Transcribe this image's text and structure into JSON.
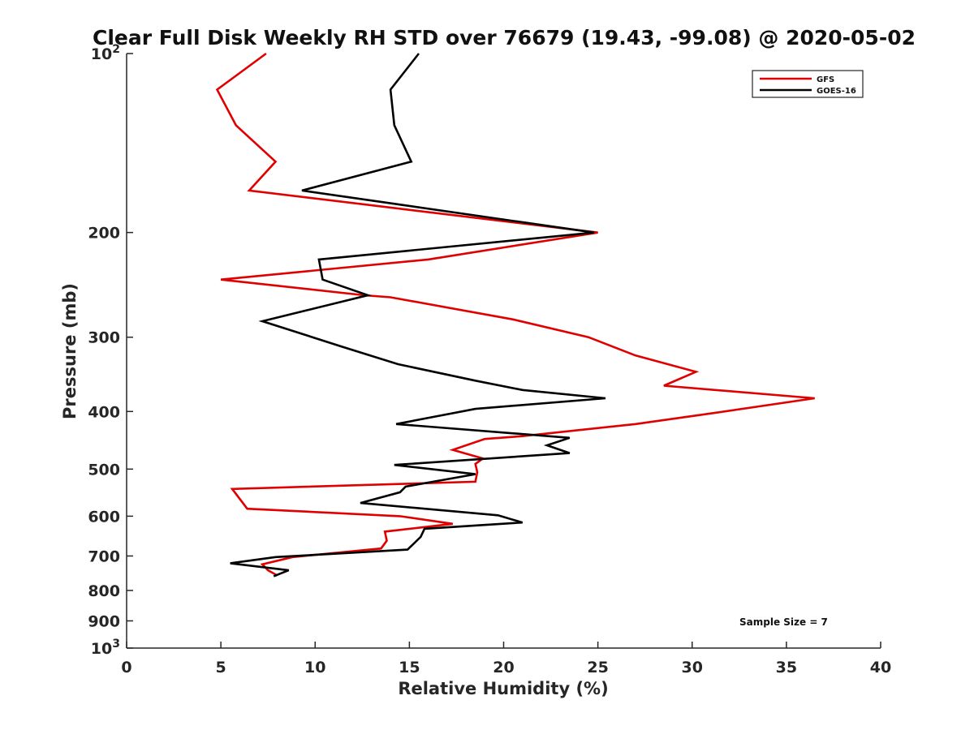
{
  "chart_data": {
    "type": "line",
    "title": "Clear Full Disk Weekly RH STD over 76679 (19.43, -99.08) @ 2020-05-02",
    "xlabel": "Relative Humidity (%)",
    "ylabel": "Pressure (mb)",
    "xlim": [
      0,
      40
    ],
    "ylim": [
      100,
      1000
    ],
    "y_scale": "log",
    "y_reversed": true,
    "x_ticks": [
      "0",
      "5",
      "10",
      "15",
      "20",
      "25",
      "30",
      "35",
      "40"
    ],
    "y_ticks": [
      {
        "value": 100,
        "base": "10",
        "exp": "2"
      },
      {
        "value": 200,
        "label": "200"
      },
      {
        "value": 300,
        "label": "300"
      },
      {
        "value": 400,
        "label": "400"
      },
      {
        "value": 500,
        "label": "500"
      },
      {
        "value": 600,
        "label": "600"
      },
      {
        "value": 700,
        "label": "700"
      },
      {
        "value": 800,
        "label": "800"
      },
      {
        "value": 900,
        "label": "900"
      },
      {
        "value": 1000,
        "base": "10",
        "exp": "3"
      }
    ],
    "grid": false,
    "legend_position": "top-right",
    "annotation": "Sample Size = 7",
    "series": [
      {
        "name": "GFS",
        "color": "#e00000",
        "points": [
          [
            7.4,
            100
          ],
          [
            4.8,
            115
          ],
          [
            5.8,
            132
          ],
          [
            7.9,
            152
          ],
          [
            6.5,
            170
          ],
          [
            25.0,
            200
          ],
          [
            16.0,
            222
          ],
          [
            5.0,
            240
          ],
          [
            12.6,
            255
          ],
          [
            14.0,
            257
          ],
          [
            20.5,
            280
          ],
          [
            24.5,
            300
          ],
          [
            27.0,
            322
          ],
          [
            30.2,
            343
          ],
          [
            28.5,
            362
          ],
          [
            36.5,
            380
          ],
          [
            31.0,
            403
          ],
          [
            27.0,
            420
          ],
          [
            21.0,
            440
          ],
          [
            19.0,
            445
          ],
          [
            17.3,
            464
          ],
          [
            18.9,
            480
          ],
          [
            18.5,
            490
          ],
          [
            18.6,
            506
          ],
          [
            18.5,
            525
          ],
          [
            5.6,
            540
          ],
          [
            6.4,
            583
          ],
          [
            14.5,
            600
          ],
          [
            17.3,
            618
          ],
          [
            13.7,
            637
          ],
          [
            13.8,
            660
          ],
          [
            13.5,
            680
          ],
          [
            8.8,
            703
          ],
          [
            7.2,
            723
          ],
          [
            7.5,
            740
          ],
          [
            7.9,
            752
          ],
          [
            7.9,
            758
          ]
        ]
      },
      {
        "name": "GOES-16",
        "color": "#000000",
        "points": [
          [
            15.5,
            100
          ],
          [
            14.0,
            115
          ],
          [
            14.2,
            132
          ],
          [
            15.1,
            152
          ],
          [
            9.3,
            170
          ],
          [
            24.8,
            200
          ],
          [
            10.2,
            222
          ],
          [
            10.4,
            240
          ],
          [
            12.8,
            255
          ],
          [
            7.2,
            282
          ],
          [
            11.4,
            311
          ],
          [
            14.4,
            333
          ],
          [
            18.5,
            355
          ],
          [
            21.0,
            368
          ],
          [
            25.4,
            380
          ],
          [
            18.5,
            396
          ],
          [
            14.3,
            420
          ],
          [
            23.5,
            443
          ],
          [
            22.3,
            456
          ],
          [
            23.5,
            470
          ],
          [
            14.2,
            492
          ],
          [
            18.5,
            510
          ],
          [
            14.8,
            535
          ],
          [
            14.5,
            547
          ],
          [
            12.4,
            570
          ],
          [
            19.7,
            598
          ],
          [
            21.0,
            615
          ],
          [
            15.8,
            630
          ],
          [
            15.6,
            650
          ],
          [
            14.9,
            683
          ],
          [
            7.9,
            703
          ],
          [
            5.5,
            720
          ],
          [
            8.6,
            740
          ],
          [
            7.8,
            757
          ]
        ]
      }
    ]
  }
}
